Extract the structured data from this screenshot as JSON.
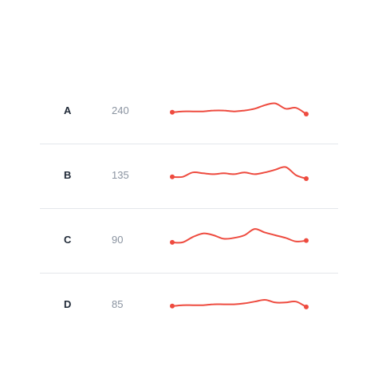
{
  "colors": {
    "line": "#ee4b3f",
    "name_text": "#1f2937",
    "value_text": "#8a93a0",
    "divider": "#e4e7eb"
  },
  "chart_data": {
    "type": "line",
    "rows": [
      {
        "name": "A",
        "value": "240",
        "series": [
          10,
          11,
          11,
          11,
          12,
          12,
          11,
          12,
          14,
          18,
          20,
          14,
          15,
          8
        ]
      },
      {
        "name": "B",
        "value": "135",
        "series": [
          10,
          10,
          15,
          14,
          13,
          14,
          13,
          15,
          13,
          15,
          18,
          21,
          12,
          8
        ]
      },
      {
        "name": "C",
        "value": "90",
        "series": [
          9,
          9,
          15,
          19,
          17,
          13,
          14,
          17,
          24,
          20,
          17,
          14,
          10,
          11
        ]
      },
      {
        "name": "D",
        "value": "85",
        "series": [
          10,
          11,
          11,
          11,
          12,
          12,
          12,
          13,
          15,
          17,
          14,
          14,
          15,
          9
        ]
      }
    ]
  }
}
